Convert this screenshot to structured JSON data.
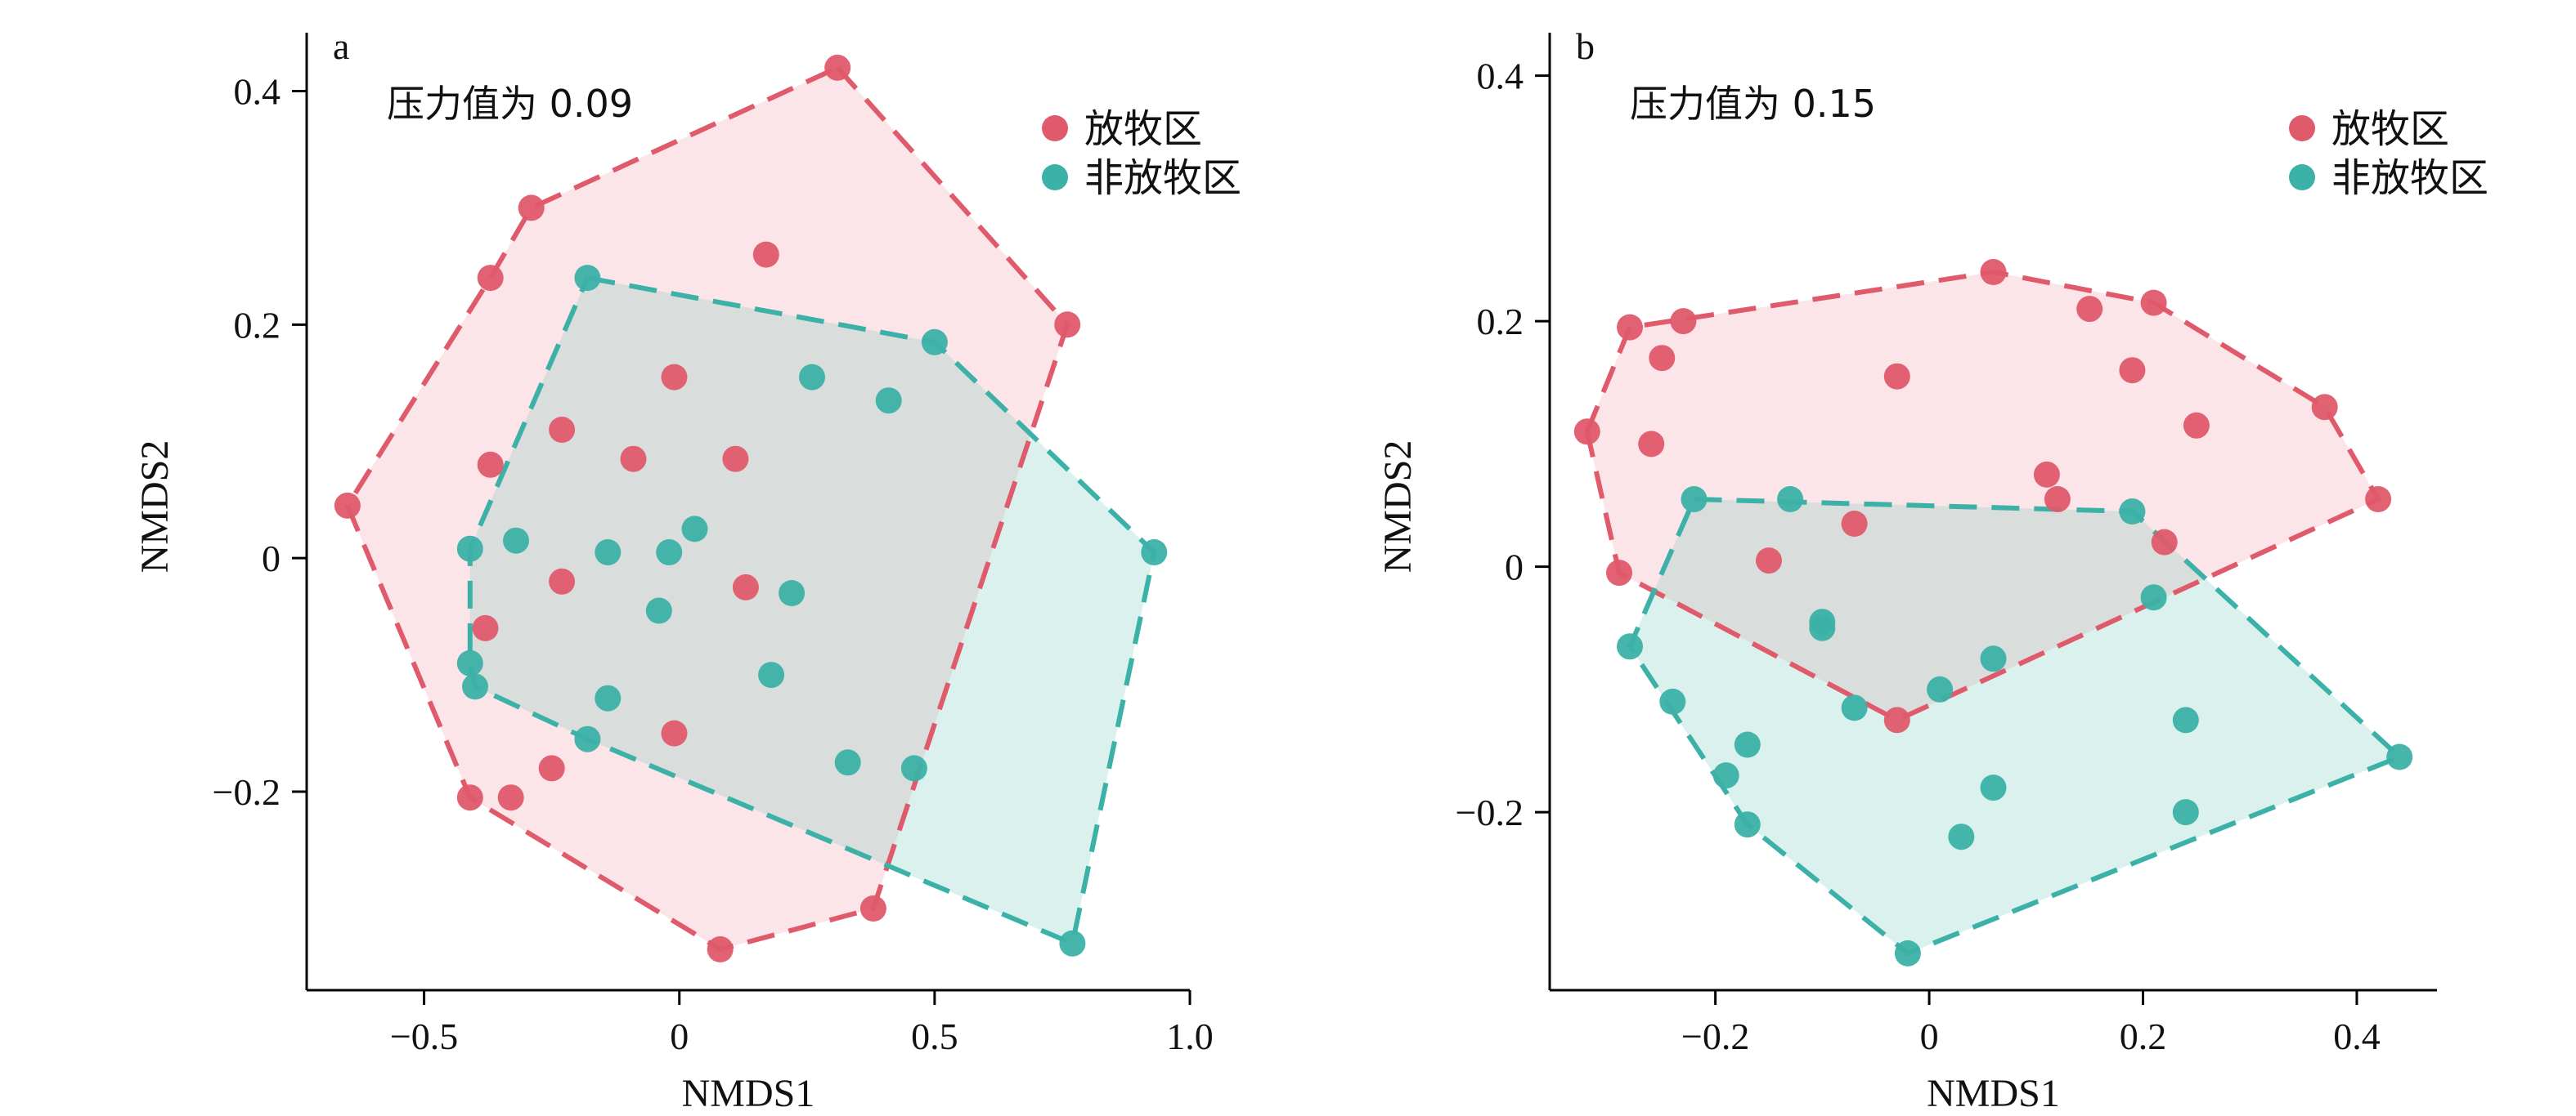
{
  "colors": {
    "grazed": "#df5a6b",
    "ungrazed": "#3cb1a8",
    "grazed_fill": "rgba(244,170,178,0.30)",
    "ungrazed_fill": "rgba(110,200,185,0.25)"
  },
  "chart_data": [
    {
      "type": "scatter",
      "panel_label": "a",
      "annotation": "压力值为 0.09",
      "xlabel": "NMDS1",
      "ylabel": "NMDS2",
      "xlim": [
        -0.73,
        1.0
      ],
      "ylim": [
        -0.37,
        0.45
      ],
      "xticks": [
        -0.5,
        0,
        0.5,
        1.0
      ],
      "xtick_labels": [
        "−0.5",
        "0",
        "0.5",
        "1.0"
      ],
      "yticks": [
        -0.2,
        0,
        0.2,
        0.4
      ],
      "ytick_labels": [
        "−0.2",
        "0",
        "0.2",
        "0.4"
      ],
      "legend_position": "top-right",
      "series": [
        {
          "name": "放牧区",
          "color_key": "grazed",
          "points": [
            [
              0.31,
              0.42
            ],
            [
              -0.29,
              0.3
            ],
            [
              -0.37,
              0.24
            ],
            [
              0.17,
              0.26
            ],
            [
              0.76,
              0.2
            ],
            [
              -0.01,
              0.155
            ],
            [
              -0.23,
              0.11
            ],
            [
              -0.09,
              0.085
            ],
            [
              0.11,
              0.085
            ],
            [
              -0.37,
              0.08
            ],
            [
              -0.65,
              0.045
            ],
            [
              -0.23,
              -0.02
            ],
            [
              0.13,
              -0.025
            ],
            [
              -0.38,
              -0.06
            ],
            [
              -0.01,
              -0.15
            ],
            [
              -0.25,
              -0.18
            ],
            [
              -0.41,
              -0.205
            ],
            [
              -0.33,
              -0.205
            ],
            [
              0.38,
              -0.3
            ],
            [
              0.08,
              -0.335
            ]
          ],
          "hull": [
            [
              0.31,
              0.42
            ],
            [
              0.76,
              0.2
            ],
            [
              0.38,
              -0.3
            ],
            [
              0.08,
              -0.335
            ],
            [
              -0.41,
              -0.205
            ],
            [
              -0.65,
              0.045
            ],
            [
              -0.37,
              0.24
            ],
            [
              -0.29,
              0.3
            ]
          ]
        },
        {
          "name": "非放牧区",
          "color_key": "ungrazed",
          "points": [
            [
              -0.18,
              0.24
            ],
            [
              0.5,
              0.185
            ],
            [
              0.26,
              0.155
            ],
            [
              0.41,
              0.135
            ],
            [
              -0.41,
              0.008
            ],
            [
              -0.32,
              0.015
            ],
            [
              -0.14,
              0.005
            ],
            [
              -0.02,
              0.005
            ],
            [
              0.03,
              0.025
            ],
            [
              0.22,
              -0.03
            ],
            [
              -0.04,
              -0.045
            ],
            [
              -0.41,
              -0.09
            ],
            [
              -0.4,
              -0.11
            ],
            [
              0.18,
              -0.1
            ],
            [
              -0.14,
              -0.12
            ],
            [
              -0.18,
              -0.155
            ],
            [
              0.33,
              -0.175
            ],
            [
              0.46,
              -0.18
            ],
            [
              0.77,
              -0.33
            ],
            [
              0.93,
              0.005
            ]
          ],
          "hull": [
            [
              -0.18,
              0.24
            ],
            [
              0.5,
              0.185
            ],
            [
              0.93,
              0.005
            ],
            [
              0.77,
              -0.33
            ],
            [
              -0.18,
              -0.155
            ],
            [
              -0.4,
              -0.11
            ],
            [
              -0.41,
              -0.09
            ],
            [
              -0.41,
              0.008
            ]
          ]
        }
      ]
    },
    {
      "type": "scatter",
      "panel_label": "b",
      "annotation": "压力值为 0.15",
      "xlabel": "NMDS1",
      "ylabel": "NMDS2",
      "xlim": [
        -0.355,
        0.475
      ],
      "ylim": [
        -0.345,
        0.435
      ],
      "xticks": [
        -0.2,
        0,
        0.2,
        0.4
      ],
      "xtick_labels": [
        "−0.2",
        "0",
        "0.2",
        "0.4"
      ],
      "yticks": [
        -0.2,
        0,
        0.2,
        0.4
      ],
      "ytick_labels": [
        "−0.2",
        "0",
        "0.2",
        "0.4"
      ],
      "legend_position": "top-right",
      "series": [
        {
          "name": "放牧区",
          "color_key": "grazed",
          "points": [
            [
              -0.28,
              0.195
            ],
            [
              -0.23,
              0.2
            ],
            [
              0.06,
              0.24
            ],
            [
              0.21,
              0.215
            ],
            [
              0.15,
              0.21
            ],
            [
              -0.25,
              0.17
            ],
            [
              -0.03,
              0.155
            ],
            [
              0.19,
              0.16
            ],
            [
              0.37,
              0.13
            ],
            [
              0.25,
              0.115
            ],
            [
              -0.32,
              0.11
            ],
            [
              -0.26,
              0.1
            ],
            [
              0.11,
              0.075
            ],
            [
              0.12,
              0.055
            ],
            [
              0.42,
              0.055
            ],
            [
              -0.07,
              0.035
            ],
            [
              0.22,
              0.02
            ],
            [
              -0.15,
              0.005
            ],
            [
              -0.29,
              -0.005
            ],
            [
              -0.03,
              -0.125
            ]
          ],
          "hull": [
            [
              -0.32,
              0.11
            ],
            [
              -0.28,
              0.195
            ],
            [
              0.06,
              0.24
            ],
            [
              0.21,
              0.215
            ],
            [
              0.37,
              0.13
            ],
            [
              0.42,
              0.055
            ],
            [
              -0.03,
              -0.125
            ],
            [
              -0.29,
              -0.005
            ]
          ]
        },
        {
          "name": "非放牧区",
          "color_key": "ungrazed",
          "points": [
            [
              -0.22,
              0.055
            ],
            [
              -0.13,
              0.055
            ],
            [
              0.19,
              0.045
            ],
            [
              0.21,
              -0.025
            ],
            [
              -0.1,
              -0.045
            ],
            [
              -0.1,
              -0.05
            ],
            [
              -0.28,
              -0.065
            ],
            [
              0.06,
              -0.075
            ],
            [
              0.01,
              -0.1
            ],
            [
              -0.24,
              -0.11
            ],
            [
              -0.07,
              -0.115
            ],
            [
              0.24,
              -0.125
            ],
            [
              -0.17,
              -0.145
            ],
            [
              -0.19,
              -0.17
            ],
            [
              0.06,
              -0.18
            ],
            [
              -0.17,
              -0.21
            ],
            [
              0.24,
              -0.2
            ],
            [
              0.03,
              -0.22
            ],
            [
              0.44,
              -0.155
            ],
            [
              -0.02,
              -0.315
            ]
          ],
          "hull": [
            [
              -0.22,
              0.055
            ],
            [
              0.19,
              0.045
            ],
            [
              0.44,
              -0.155
            ],
            [
              -0.02,
              -0.315
            ],
            [
              -0.17,
              -0.21
            ],
            [
              -0.28,
              -0.065
            ]
          ]
        }
      ]
    }
  ]
}
